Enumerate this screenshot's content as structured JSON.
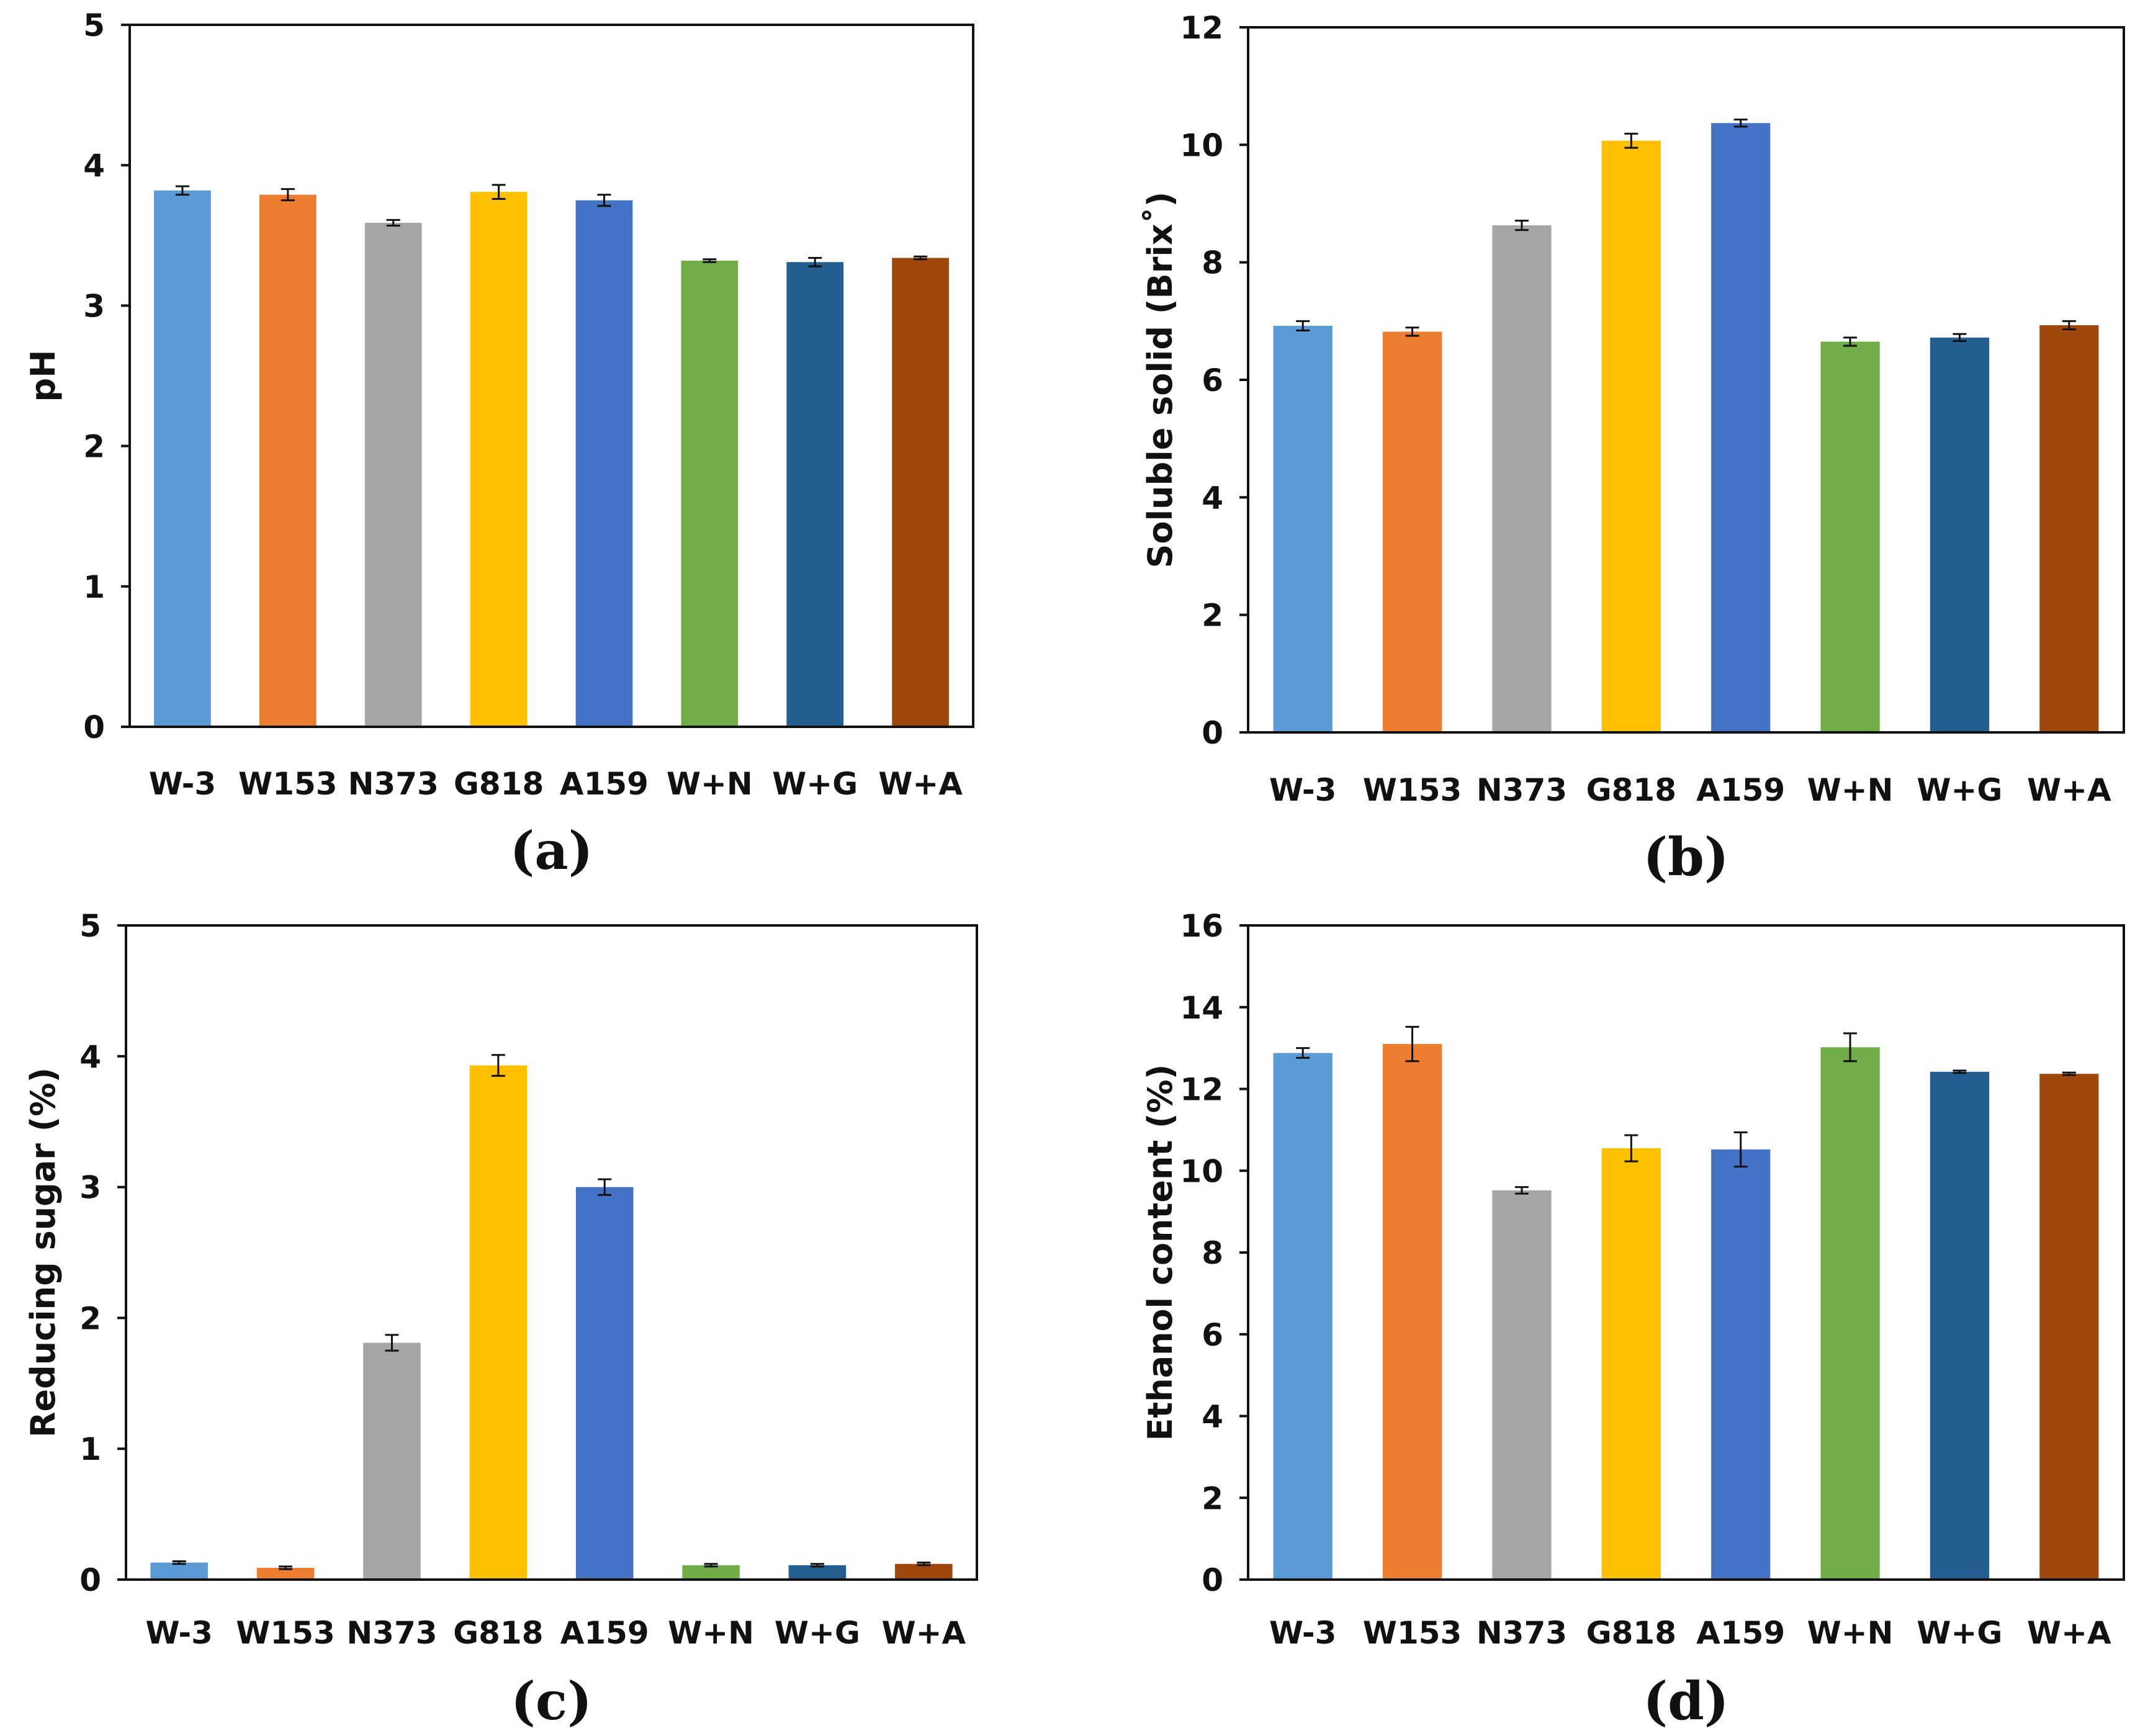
{
  "colors": [
    "#5B9BD5",
    "#ED7D31",
    "#A5A5A5",
    "#FFC000",
    "#4472C4",
    "#70AD47",
    "#255E91",
    "#9E480E"
  ],
  "chart_data": [
    {
      "type": "bar",
      "panel": "(a)",
      "title": "",
      "xlabel": "",
      "ylabel": "pH",
      "ylim": [
        0,
        5
      ],
      "yticks": [
        0,
        1,
        2,
        3,
        4,
        5
      ],
      "grid": false,
      "categories": [
        "W-3",
        "W153",
        "N373",
        "G818",
        "A159",
        "W+N",
        "W+G",
        "W+A"
      ],
      "values": [
        3.82,
        3.79,
        3.59,
        3.81,
        3.75,
        3.32,
        3.31,
        3.34
      ],
      "errors": [
        0.03,
        0.04,
        0.02,
        0.05,
        0.04,
        0.01,
        0.03,
        0.01
      ]
    },
    {
      "type": "bar",
      "panel": "(b)",
      "title": "",
      "xlabel": "",
      "ylabel": "Soluble solid (Brix˚)",
      "ylim": [
        0,
        12
      ],
      "yticks": [
        0,
        2,
        4,
        6,
        8,
        10,
        12
      ],
      "grid": false,
      "categories": [
        "W-3",
        "W153",
        "N373",
        "G818",
        "A159",
        "W+N",
        "W+G",
        "W+A"
      ],
      "values": [
        6.92,
        6.82,
        8.63,
        10.07,
        10.37,
        6.65,
        6.72,
        6.93
      ],
      "errors": [
        0.08,
        0.07,
        0.08,
        0.12,
        0.06,
        0.07,
        0.06,
        0.07
      ]
    },
    {
      "type": "bar",
      "panel": "(c)",
      "title": "",
      "xlabel": "",
      "ylabel": "Reducing sugar (%)",
      "ylim": [
        0,
        5
      ],
      "yticks": [
        0,
        1,
        2,
        3,
        4,
        5
      ],
      "grid": false,
      "categories": [
        "W-3",
        "W153",
        "N373",
        "G818",
        "A159",
        "W+N",
        "W+G",
        "W+A"
      ],
      "values": [
        0.13,
        0.09,
        1.81,
        3.93,
        3.0,
        0.11,
        0.11,
        0.12
      ],
      "errors": [
        0.01,
        0.01,
        0.06,
        0.08,
        0.06,
        0.01,
        0.01,
        0.01
      ]
    },
    {
      "type": "bar",
      "panel": "(d)",
      "title": "",
      "xlabel": "",
      "ylabel": "Ethanol content (%)",
      "ylim": [
        0,
        16
      ],
      "yticks": [
        0,
        2,
        4,
        6,
        8,
        10,
        12,
        14,
        16
      ],
      "grid": false,
      "categories": [
        "W-3",
        "W153",
        "N373",
        "G818",
        "A159",
        "W+N",
        "W+G",
        "W+A"
      ],
      "values": [
        12.88,
        13.1,
        9.52,
        10.55,
        10.52,
        13.02,
        12.42,
        12.37
      ],
      "errors": [
        0.12,
        0.42,
        0.08,
        0.32,
        0.42,
        0.34,
        0.03,
        0.03
      ]
    }
  ]
}
